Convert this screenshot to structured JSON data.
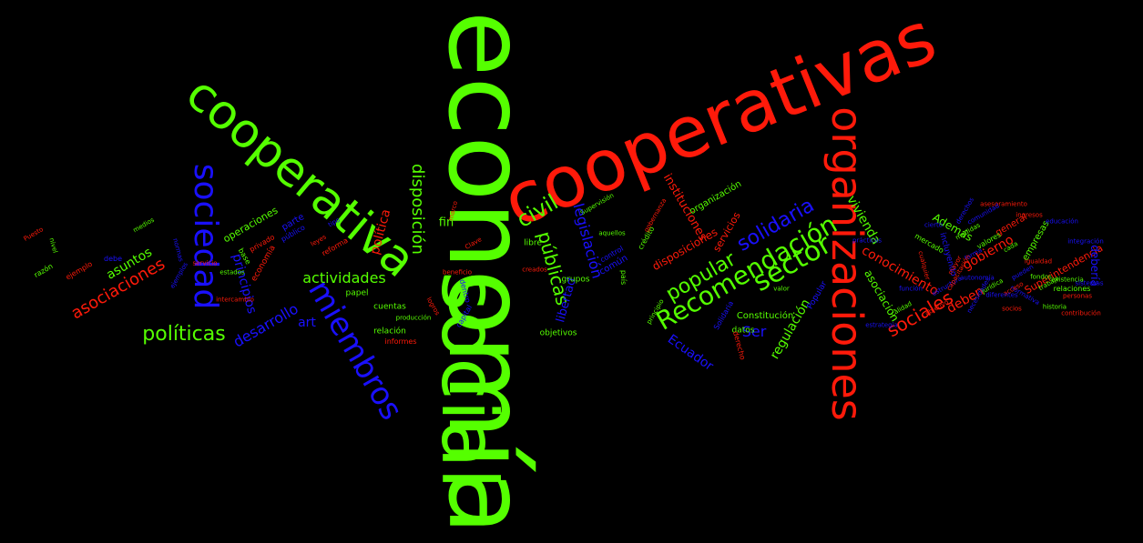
{
  "colors": {
    "red": "#ff1a0a",
    "green": "#55ff00",
    "blue": "#1a10ff",
    "background": "#000000"
  },
  "words": [
    {
      "text": "economía",
      "color": "green"
    },
    {
      "text": "social",
      "color": "green"
    },
    {
      "text": "cooperativas",
      "color": "red"
    },
    {
      "text": "cooperativas",
      "color": "red"
    },
    {
      "text": "cooperativa",
      "color": "green"
    },
    {
      "text": "organizaciones",
      "color": "red"
    },
    {
      "text": "sociedad",
      "color": "blue"
    },
    {
      "text": "miembros",
      "color": "blue"
    },
    {
      "text": "disposición",
      "color": "green"
    },
    {
      "text": "civil",
      "color": "green"
    },
    {
      "text": "Recomendación",
      "color": "green"
    },
    {
      "text": "sector",
      "color": "green"
    },
    {
      "text": "popular",
      "color": "green"
    },
    {
      "text": "solidaria",
      "color": "blue"
    },
    {
      "text": "políticas",
      "color": "green"
    },
    {
      "text": "sociales",
      "color": "red"
    },
    {
      "text": "vivienda",
      "color": "green"
    },
    {
      "text": "asociaciones",
      "color": "red"
    },
    {
      "text": "actividades",
      "color": "green"
    },
    {
      "text": "desarrollo",
      "color": "blue"
    },
    {
      "text": "legislación",
      "color": "blue"
    },
    {
      "text": "públicas",
      "color": "green"
    },
    {
      "text": "conocimiento",
      "color": "red"
    },
    {
      "text": "asociación",
      "color": "green"
    },
    {
      "text": "gobierno",
      "color": "red"
    },
    {
      "text": "Ecuador",
      "color": "blue"
    },
    {
      "text": "regulación",
      "color": "green"
    },
    {
      "text": "instituciones",
      "color": "red"
    },
    {
      "text": "Superintendencia",
      "color": "red"
    },
    {
      "text": "política",
      "color": "red"
    },
    {
      "text": "principios",
      "color": "blue"
    },
    {
      "text": "asuntos",
      "color": "green"
    },
    {
      "text": "deben",
      "color": "red"
    },
    {
      "text": "Además",
      "color": "green"
    },
    {
      "text": "debería",
      "color": "blue"
    },
    {
      "text": "empresas",
      "color": "green"
    },
    {
      "text": "servicios",
      "color": "red"
    },
    {
      "text": "disposiciones",
      "color": "red"
    },
    {
      "text": "Ser",
      "color": "blue"
    },
    {
      "text": "libertad",
      "color": "blue"
    },
    {
      "text": "fin",
      "color": "green"
    },
    {
      "text": "art",
      "color": "blue"
    },
    {
      "text": "Constitución",
      "color": "green"
    },
    {
      "text": "organización",
      "color": "green"
    },
    {
      "text": "operaciones",
      "color": "green"
    },
    {
      "text": "parte",
      "color": "blue"
    },
    {
      "text": "general",
      "color": "red"
    },
    {
      "text": "común",
      "color": "blue"
    },
    {
      "text": "papel",
      "color": "green"
    },
    {
      "text": "grupos",
      "color": "green"
    },
    {
      "text": "libre",
      "color": "green"
    },
    {
      "text": "objetivos",
      "color": "green"
    },
    {
      "text": "relación",
      "color": "green"
    },
    {
      "text": "cuentas",
      "color": "green"
    },
    {
      "text": "datos",
      "color": "green"
    },
    {
      "text": "Popular",
      "color": "blue"
    },
    {
      "text": "economía",
      "color": "red"
    },
    {
      "text": "relaciones",
      "color": "green"
    },
    {
      "text": "informes",
      "color": "red"
    },
    {
      "text": "dentro",
      "color": "blue"
    },
    {
      "text": "mercado",
      "color": "green"
    },
    {
      "text": "valores",
      "color": "green"
    },
    {
      "text": "incluyendo",
      "color": "blue"
    },
    {
      "text": "capital",
      "color": "blue"
    },
    {
      "text": "Solidaria",
      "color": "blue"
    },
    {
      "text": "derecho",
      "color": "red"
    },
    {
      "text": "debe",
      "color": "blue"
    },
    {
      "text": "razón",
      "color": "green"
    },
    {
      "text": "privado",
      "color": "red"
    },
    {
      "text": "crédito",
      "color": "green"
    },
    {
      "text": "control",
      "color": "blue"
    },
    {
      "text": "país",
      "color": "green"
    },
    {
      "text": "público",
      "color": "blue"
    },
    {
      "text": "base",
      "color": "green"
    },
    {
      "text": "reforma",
      "color": "red"
    },
    {
      "text": "ejemplo",
      "color": "red"
    },
    {
      "text": "estados",
      "color": "green"
    },
    {
      "text": "leyes",
      "color": "red"
    },
    {
      "text": "normas",
      "color": "blue"
    },
    {
      "text": "Puesto",
      "color": "red"
    },
    {
      "text": "medios",
      "color": "green"
    },
    {
      "text": "nivel",
      "color": "green"
    },
    {
      "text": "pueden",
      "color": "blue"
    },
    {
      "text": "logros",
      "color": "red"
    },
    {
      "text": "Clave",
      "color": "red"
    },
    {
      "text": "marco",
      "color": "red"
    },
    {
      "text": "beneficio",
      "color": "red"
    },
    {
      "text": "servicio",
      "color": "red"
    },
    {
      "text": "función",
      "color": "blue"
    },
    {
      "text": "forma",
      "color": "blue"
    },
    {
      "text": "cierto",
      "color": "blue"
    },
    {
      "text": "tipo",
      "color": "blue"
    },
    {
      "text": "creados",
      "color": "red"
    },
    {
      "text": "aquellos",
      "color": "green"
    },
    {
      "text": "producción",
      "color": "green"
    },
    {
      "text": "Supervisión",
      "color": "green"
    },
    {
      "text": "gobernanza",
      "color": "red"
    },
    {
      "text": "ejemplos",
      "color": "blue"
    },
    {
      "text": "normativa",
      "color": "blue"
    },
    {
      "text": "prácticas",
      "color": "blue"
    },
    {
      "text": "estrategia",
      "color": "blue"
    },
    {
      "text": "valor",
      "color": "green"
    },
    {
      "text": "calidad",
      "color": "green"
    },
    {
      "text": "mayor",
      "color": "red"
    },
    {
      "text": "cualquier",
      "color": "red"
    },
    {
      "text": "necesidades",
      "color": "blue"
    },
    {
      "text": "intercambio",
      "color": "red"
    },
    {
      "text": "cada",
      "color": "green"
    },
    {
      "text": "estructura",
      "color": "blue"
    },
    {
      "text": "ingresos",
      "color": "red"
    },
    {
      "text": "trabajo",
      "color": "green"
    },
    {
      "text": "acceso",
      "color": "red"
    },
    {
      "text": "derechos",
      "color": "blue"
    },
    {
      "text": "diferentes",
      "color": "blue"
    },
    {
      "text": "igualdad",
      "color": "red"
    },
    {
      "text": "jurídica",
      "color": "green"
    },
    {
      "text": "educación",
      "color": "blue"
    },
    {
      "text": "personas",
      "color": "red"
    },
    {
      "text": "asesoramiento",
      "color": "red"
    },
    {
      "text": "principio",
      "color": "green"
    },
    {
      "text": "integración",
      "color": "blue"
    },
    {
      "text": "capacitación",
      "color": "red"
    },
    {
      "text": "comunidad",
      "color": "blue"
    },
    {
      "text": "socios",
      "color": "red"
    },
    {
      "text": "medidas",
      "color": "green"
    },
    {
      "text": "objetivo",
      "color": "red"
    },
    {
      "text": "fondos",
      "color": "green"
    },
    {
      "text": "autonomía",
      "color": "blue"
    },
    {
      "text": "existencia",
      "color": "green"
    },
    {
      "text": "historia",
      "color": "green"
    },
    {
      "text": "sistemas",
      "color": "blue"
    },
    {
      "text": "contribución",
      "color": "red"
    },
    {
      "text": "eficiencia",
      "color": "blue"
    },
    {
      "text": "necesario",
      "color": "red"
    },
    {
      "text": "instrumentos",
      "color": "green"
    },
    {
      "text": "representación",
      "color": "blue"
    },
    {
      "text": "promoción",
      "color": "red"
    },
    {
      "text": "reconocimiento",
      "color": "green"
    },
    {
      "text": "participación",
      "color": "blue"
    }
  ]
}
